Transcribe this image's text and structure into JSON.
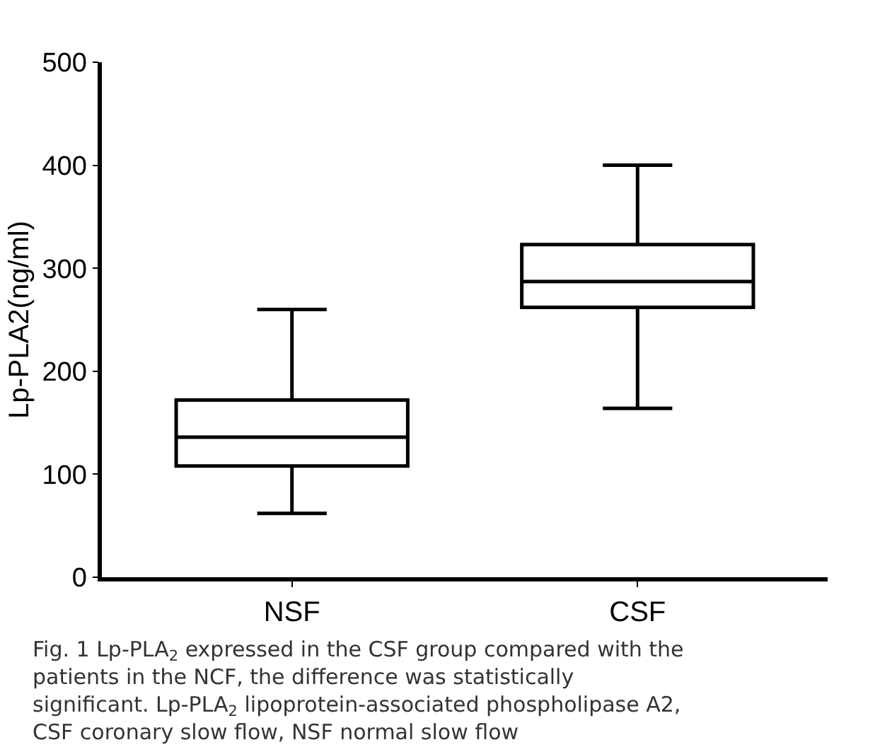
{
  "chart_data": {
    "type": "box",
    "ylabel": "Lp-PLA2(ng/ml)",
    "categories": [
      "NSF",
      "CSF"
    ],
    "boxes": [
      {
        "low": 62,
        "q1": 108,
        "median": 136,
        "q3": 172,
        "high": 260
      },
      {
        "low": 164,
        "q1": 262,
        "median": 287,
        "q3": 323,
        "high": 400
      }
    ],
    "color": "#000000",
    "ylim": [
      0,
      500
    ],
    "yticks": [
      0,
      100,
      200,
      300,
      400,
      500
    ],
    "annotations": [
      "Fig. 1 Lp-PLA$_{2}$ expressed in the CSF group compared with the patients in the NCF, the difference was statistically significant. Lp-PLA$_{2}$ lipoprotein-associated phospholipase A2, CSF coronary slow flow, NSF normal slow flow"
    ]
  }
}
